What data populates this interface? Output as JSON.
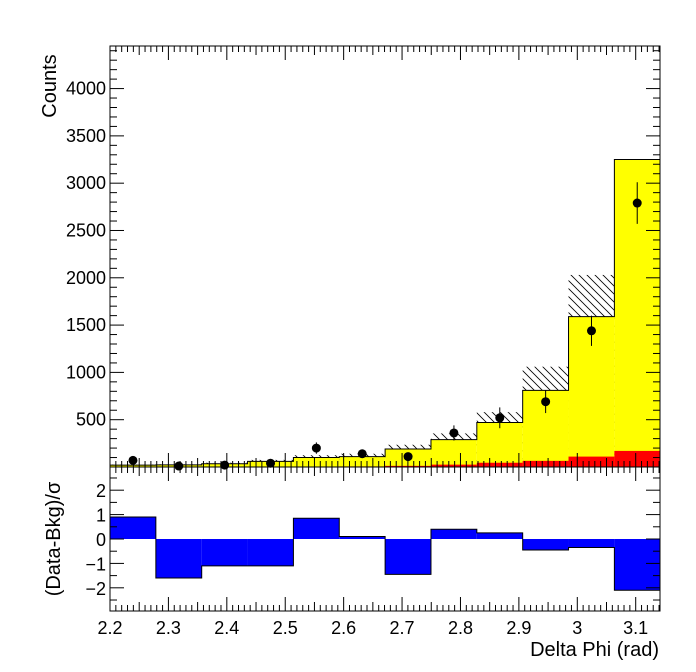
{
  "chart_data": [
    {
      "type": "histogram",
      "panel": "main",
      "ylabel": "Counts",
      "xlim": [
        2.2,
        3.1416
      ],
      "ylim": [
        0,
        4450
      ],
      "y_ticks": [
        500,
        1000,
        1500,
        2000,
        2500,
        3000,
        3500,
        4000
      ],
      "y_tick_labels": [
        "500",
        "1000",
        "1500",
        "2000",
        "2500",
        "3000",
        "3500",
        "4000"
      ],
      "bin_edges": [
        2.2,
        2.2785,
        2.357,
        2.4355,
        2.514,
        2.5925,
        2.671,
        2.7495,
        2.828,
        2.9065,
        2.985,
        3.0635,
        3.1416
      ],
      "series": [
        {
          "role": "stacked-total",
          "fill": "#ffff00",
          "values": [
            20,
            22,
            35,
            60,
            100,
            110,
            190,
            290,
            470,
            810,
            1590,
            3250
          ]
        },
        {
          "role": "red-component",
          "fill": "#ff0000",
          "values": [
            2,
            2,
            3,
            4,
            5,
            6,
            12,
            25,
            45,
            65,
            110,
            170
          ]
        },
        {
          "role": "uncertainty-band",
          "pattern": "hatched",
          "upper": [
            25,
            28,
            45,
            75,
            125,
            140,
            235,
            355,
            580,
            1060,
            2030,
            3250
          ]
        },
        {
          "role": "data",
          "marker": "#000000",
          "x": [
            2.2393,
            2.3178,
            2.3963,
            2.4748,
            2.5533,
            2.6318,
            2.7103,
            2.7888,
            2.8673,
            2.9458,
            3.0243,
            3.1026
          ],
          "y": [
            70,
            10,
            20,
            40,
            200,
            140,
            110,
            360,
            520,
            690,
            1440,
            2790
          ],
          "yerr": [
            10,
            5,
            6,
            8,
            60,
            40,
            35,
            80,
            110,
            120,
            160,
            220
          ]
        }
      ]
    },
    {
      "type": "bar",
      "panel": "ratio",
      "xlabel": "Delta Phi (rad)",
      "ylabel": "(Data-Bkg)/σ",
      "xlim": [
        2.2,
        3.1416
      ],
      "ylim": [
        -2.95,
        2.95
      ],
      "y_ticks": [
        -2,
        -1,
        0,
        1,
        2
      ],
      "y_tick_labels": [
        "−2",
        "−1",
        "0",
        "1",
        "2"
      ],
      "x_ticks": [
        2.2,
        2.3,
        2.4,
        2.5,
        2.6,
        2.7,
        2.8,
        2.9,
        3.0,
        3.1
      ],
      "x_tick_labels": [
        "2.2",
        "2.3",
        "2.4",
        "2.5",
        "2.6",
        "2.7",
        "2.8",
        "2.9",
        "3",
        "3.1"
      ],
      "bin_edges": [
        2.2,
        2.2785,
        2.357,
        2.4355,
        2.514,
        2.5925,
        2.671,
        2.7495,
        2.828,
        2.9065,
        2.985,
        3.0635,
        3.1416
      ],
      "fill": "#0000ff",
      "values": [
        0.9,
        -1.6,
        -1.1,
        -1.1,
        0.85,
        0.1,
        -1.45,
        0.4,
        0.25,
        -0.45,
        -0.35,
        -2.1
      ]
    }
  ]
}
